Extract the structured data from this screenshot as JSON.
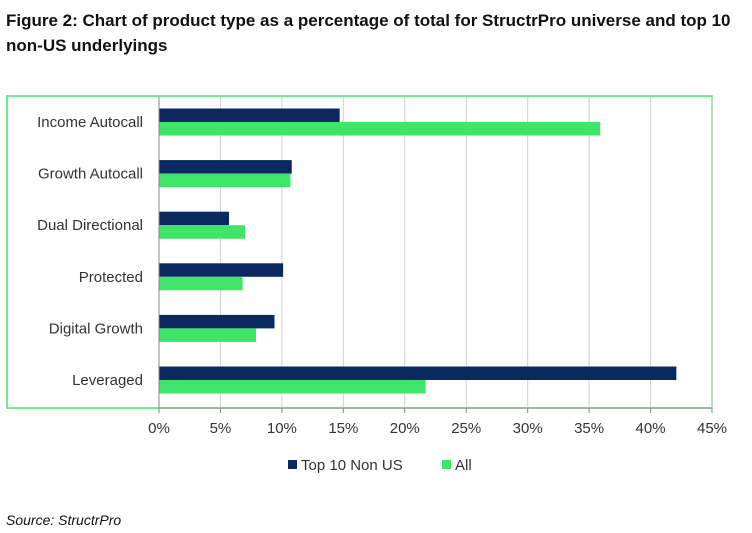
{
  "figure": {
    "title": "Figure 2: Chart of product type as a percentage of total for StructrPro universe and top 10 non-US underlyings",
    "source": "Source: StructrPro"
  },
  "colors": {
    "top10": "#0b2960",
    "all": "#3ee567",
    "frame": "#3ee567",
    "grid": "#d0d0d0",
    "axis": "#888888",
    "text": "#333333"
  },
  "chart_data": {
    "type": "bar",
    "orientation": "horizontal",
    "categories": [
      "Income Autocall",
      "Growth Autocall",
      "Dual Directional",
      "Protected",
      "Digital Growth",
      "Leveraged"
    ],
    "series": [
      {
        "name": "Top 10 Non US",
        "values": [
          14.7,
          10.8,
          5.7,
          10.1,
          9.4,
          42.1
        ]
      },
      {
        "name": "All",
        "values": [
          35.9,
          10.7,
          7.0,
          6.8,
          7.9,
          21.7
        ]
      }
    ],
    "xlim": [
      0,
      45
    ],
    "xticks": [
      0,
      5,
      10,
      15,
      20,
      25,
      30,
      35,
      40,
      45
    ],
    "tick_format": "percent",
    "grid": true,
    "legend": "bottom"
  }
}
